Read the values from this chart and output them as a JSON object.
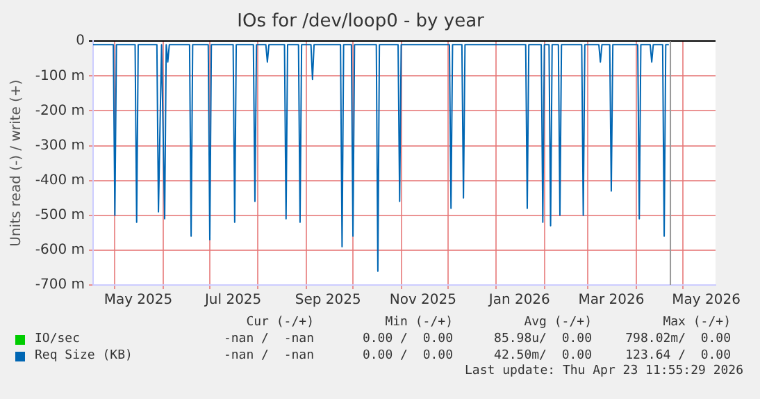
{
  "chart_data": {
    "type": "line",
    "title": "IOs for /dev/loop0 - by year",
    "ylabel": "Units read (-) / write (+)",
    "xlim": [
      "2025-04-17",
      "2026-05-22"
    ],
    "xticks": [
      {
        "value": "2025-05-01",
        "label": null
      },
      {
        "value": "2025-05-16",
        "label": "May 2025"
      },
      {
        "value": "2025-06-01",
        "label": null
      },
      {
        "value": "2025-07-01",
        "label": null
      },
      {
        "value": "2025-07-16",
        "label": "Jul 2025"
      },
      {
        "value": "2025-08-01",
        "label": null
      },
      {
        "value": "2025-09-01",
        "label": null
      },
      {
        "value": "2025-09-15",
        "label": "Sep 2025"
      },
      {
        "value": "2025-10-01",
        "label": null
      },
      {
        "value": "2025-11-01",
        "label": null
      },
      {
        "value": "2025-11-15",
        "label": "Nov 2025"
      },
      {
        "value": "2025-12-01",
        "label": null
      },
      {
        "value": "2026-01-01",
        "label": null
      },
      {
        "value": "2026-01-16",
        "label": "Jan 2026"
      },
      {
        "value": "2026-02-01",
        "label": null
      },
      {
        "value": "2026-03-01",
        "label": null
      },
      {
        "value": "2026-03-16",
        "label": "Mar 2026"
      },
      {
        "value": "2026-04-01",
        "label": null
      },
      {
        "value": "2026-05-01",
        "label": null
      },
      {
        "value": "2026-05-16",
        "label": "May 2026"
      }
    ],
    "ylim": [
      -700,
      0
    ],
    "yticks": [
      {
        "value": 0,
        "label": "0"
      },
      {
        "value": -100,
        "label": "-100 m"
      },
      {
        "value": -200,
        "label": "-200 m"
      },
      {
        "value": -300,
        "label": "-300 m"
      },
      {
        "value": -400,
        "label": "-400 m"
      },
      {
        "value": -500,
        "label": "-500 m"
      },
      {
        "value": -600,
        "label": "-600 m"
      },
      {
        "value": -700,
        "label": "-700 m"
      }
    ],
    "grid": true,
    "legend": "bottom",
    "marker": "none",
    "line_style": "solid",
    "series": [
      {
        "name": "IO/sec",
        "color": "#00cc00"
      },
      {
        "name": "Req Size (KB)",
        "color": "#0066b3",
        "x": [
          "2025-04-17",
          "2025-04-30",
          "2025-05-01",
          "2025-05-02",
          "2025-05-14",
          "2025-05-15",
          "2025-05-16",
          "2025-05-28",
          "2025-05-29",
          "2025-05-31",
          "2025-06-02",
          "2025-06-03",
          "2025-06-04",
          "2025-06-05",
          "2025-06-18",
          "2025-06-19",
          "2025-06-20",
          "2025-06-30",
          "2025-07-01",
          "2025-07-02",
          "2025-07-16",
          "2025-07-17",
          "2025-07-18",
          "2025-07-29",
          "2025-07-30",
          "2025-07-31",
          "2025-08-06",
          "2025-08-07",
          "2025-08-08",
          "2025-08-18",
          "2025-08-19",
          "2025-08-20",
          "2025-08-27",
          "2025-08-28",
          "2025-08-29",
          "2025-09-04",
          "2025-09-05",
          "2025-09-06",
          "2025-09-23",
          "2025-09-24",
          "2025-09-25",
          "2025-09-30",
          "2025-10-01",
          "2025-10-02",
          "2025-10-16",
          "2025-10-17",
          "2025-10-18",
          "2025-10-30",
          "2025-10-31",
          "2025-11-01",
          "2025-12-02",
          "2025-12-03",
          "2025-12-04",
          "2025-12-10",
          "2025-12-11",
          "2025-12-12",
          "2026-01-20",
          "2026-01-21",
          "2026-01-22",
          "2026-01-30",
          "2026-01-31",
          "2026-02-01",
          "2026-02-04",
          "2026-02-05",
          "2026-02-06",
          "2026-02-10",
          "2026-02-11",
          "2026-02-12",
          "2026-02-25",
          "2026-02-26",
          "2026-02-27",
          "2026-03-08",
          "2026-03-09",
          "2026-03-10",
          "2026-03-15",
          "2026-03-16",
          "2026-03-17",
          "2026-04-02",
          "2026-04-03",
          "2026-04-04",
          "2026-04-10",
          "2026-04-11",
          "2026-04-12",
          "2026-04-18",
          "2026-04-19",
          "2026-04-20",
          "2026-04-22"
        ],
        "values": [
          -10,
          -10,
          -500,
          -10,
          -10,
          -520,
          -10,
          -10,
          -490,
          -10,
          -510,
          -10,
          -60,
          -10,
          -10,
          -560,
          -10,
          -10,
          -570,
          -10,
          -10,
          -520,
          -10,
          -10,
          -460,
          -10,
          -10,
          -60,
          -10,
          -10,
          -510,
          -10,
          -10,
          -520,
          -10,
          -10,
          -110,
          -10,
          -10,
          -590,
          -10,
          -10,
          -560,
          -10,
          -10,
          -660,
          -10,
          -10,
          -460,
          -10,
          -10,
          -480,
          -10,
          -10,
          -450,
          -10,
          -10,
          -480,
          -10,
          -10,
          -520,
          -10,
          -10,
          -530,
          -10,
          -10,
          -500,
          -10,
          -10,
          -500,
          -10,
          -10,
          -60,
          -10,
          -10,
          -430,
          -10,
          -10,
          -510,
          -10,
          -10,
          -60,
          -10,
          -10,
          -560,
          -10,
          -10
        ]
      }
    ],
    "ref_lines": [
      {
        "axis": "x",
        "value": "2026-04-23",
        "color": "#999999"
      }
    ],
    "annotations": [
      "Cur (-/+)",
      "Min (-/+)",
      "Avg (-/+)",
      "Max (-/+)",
      "-nan /  -nan",
      "0.00 /  0.00",
      "85.98u/  0.00",
      "798.02m/  0.00",
      "-nan /  -nan",
      "0.00 /  0.00",
      "42.50m/  0.00",
      "123.64 /  0.00",
      "Last update: Thu Apr 23 11:55:29 2026"
    ]
  }
}
